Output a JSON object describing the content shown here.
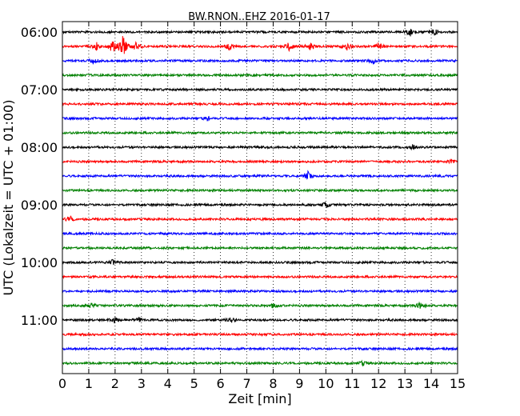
{
  "chart_data": {
    "type": "line",
    "title": "BW.RNON..EHZ 2016-01-17",
    "xlabel": "Zeit  [min]",
    "ylabel": "UTC (Lokalzeit = UTC + 01:00)",
    "xlim": [
      0,
      15
    ],
    "x_ticks": [
      "0",
      "1",
      "2",
      "3",
      "4",
      "5",
      "6",
      "7",
      "8",
      "9",
      "10",
      "11",
      "12",
      "13",
      "14",
      "15"
    ],
    "y_tick_labels": [
      "06:00",
      "07:00",
      "08:00",
      "09:00",
      "10:00",
      "11:00"
    ],
    "grid": "vertical dotted",
    "trace_interval_min": 15,
    "trace_colors": [
      "#000000",
      "#ff0000",
      "#0000ff",
      "#008000"
    ],
    "traces": [
      {
        "start": "06:00",
        "events": [
          {
            "t": 13.2,
            "amp": 0.35
          },
          {
            "t": 14.1,
            "amp": 0.3
          }
        ]
      },
      {
        "start": "06:15",
        "events": [
          {
            "t": 1.3,
            "amp": 0.35
          },
          {
            "t": 1.9,
            "amp": 0.6
          },
          {
            "t": 2.3,
            "amp": 1.0
          },
          {
            "t": 2.8,
            "amp": 0.4
          },
          {
            "t": 6.3,
            "amp": 0.35
          },
          {
            "t": 8.6,
            "amp": 0.35
          },
          {
            "t": 9.4,
            "amp": 0.3
          },
          {
            "t": 10.8,
            "amp": 0.3
          },
          {
            "t": 12.0,
            "amp": 0.3
          }
        ]
      },
      {
        "start": "06:30",
        "events": [
          {
            "t": 1.2,
            "amp": 0.3
          },
          {
            "t": 11.8,
            "amp": 0.25
          }
        ]
      },
      {
        "start": "06:45",
        "events": []
      },
      {
        "start": "07:00",
        "events": []
      },
      {
        "start": "07:15",
        "events": []
      },
      {
        "start": "07:30",
        "events": [
          {
            "t": 5.5,
            "amp": 0.2
          }
        ]
      },
      {
        "start": "07:45",
        "events": []
      },
      {
        "start": "08:00",
        "events": [
          {
            "t": 13.3,
            "amp": 0.2
          }
        ]
      },
      {
        "start": "08:15",
        "events": [
          {
            "t": 14.8,
            "amp": 0.2
          }
        ]
      },
      {
        "start": "08:30",
        "events": [
          {
            "t": 9.3,
            "amp": 0.45
          }
        ]
      },
      {
        "start": "08:45",
        "events": []
      },
      {
        "start": "09:00",
        "events": [
          {
            "t": 10.0,
            "amp": 0.25
          }
        ]
      },
      {
        "start": "09:15",
        "events": [
          {
            "t": 0.3,
            "amp": 0.25
          }
        ]
      },
      {
        "start": "09:30",
        "events": []
      },
      {
        "start": "09:45",
        "events": []
      },
      {
        "start": "10:00",
        "events": [
          {
            "t": 1.9,
            "amp": 0.2
          }
        ]
      },
      {
        "start": "10:15",
        "events": []
      },
      {
        "start": "10:30",
        "events": []
      },
      {
        "start": "10:45",
        "events": [
          {
            "t": 1.1,
            "amp": 0.2
          },
          {
            "t": 8.0,
            "amp": 0.2
          },
          {
            "t": 13.6,
            "amp": 0.35
          }
        ]
      },
      {
        "start": "11:00",
        "events": [
          {
            "t": 2.0,
            "amp": 0.25
          },
          {
            "t": 2.9,
            "amp": 0.2
          },
          {
            "t": 6.4,
            "amp": 0.2
          }
        ]
      },
      {
        "start": "11:15",
        "events": []
      },
      {
        "start": "11:30",
        "events": []
      },
      {
        "start": "11:45",
        "events": [
          {
            "t": 11.4,
            "amp": 0.15
          }
        ]
      }
    ]
  }
}
